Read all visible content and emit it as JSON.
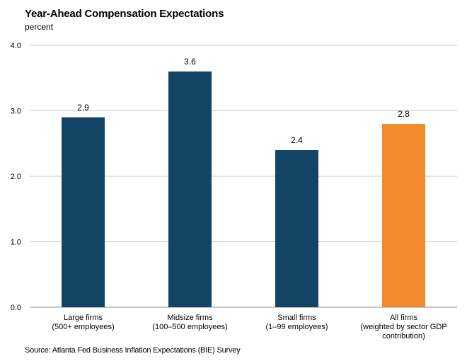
{
  "chart_data": {
    "type": "bar",
    "title": "Year-Ahead Compensation Expectations",
    "ylabel": "percent",
    "xlabel": "",
    "ylim": [
      0,
      4
    ],
    "yticks": [
      "0.0",
      "1.0",
      "2.0",
      "3.0",
      "4.0"
    ],
    "grid": true,
    "categories": [
      [
        "Large firms",
        "(500+ employees)"
      ],
      [
        "Midsize firms",
        "(100–500 employees)"
      ],
      [
        "Small firms",
        "(1–99 employees)"
      ],
      [
        "All firms",
        "(weighted by sector GDP",
        "contribution)"
      ]
    ],
    "values": [
      2.9,
      3.6,
      2.4,
      2.8
    ],
    "data_labels": [
      "2.9",
      "3.6",
      "2.4",
      "2.8"
    ],
    "colors": [
      "#124466",
      "#124466",
      "#124466",
      "#f28b2e"
    ],
    "source": "Source: Atlanta Fed Business Inflation Expectations (BIE) Survey"
  }
}
